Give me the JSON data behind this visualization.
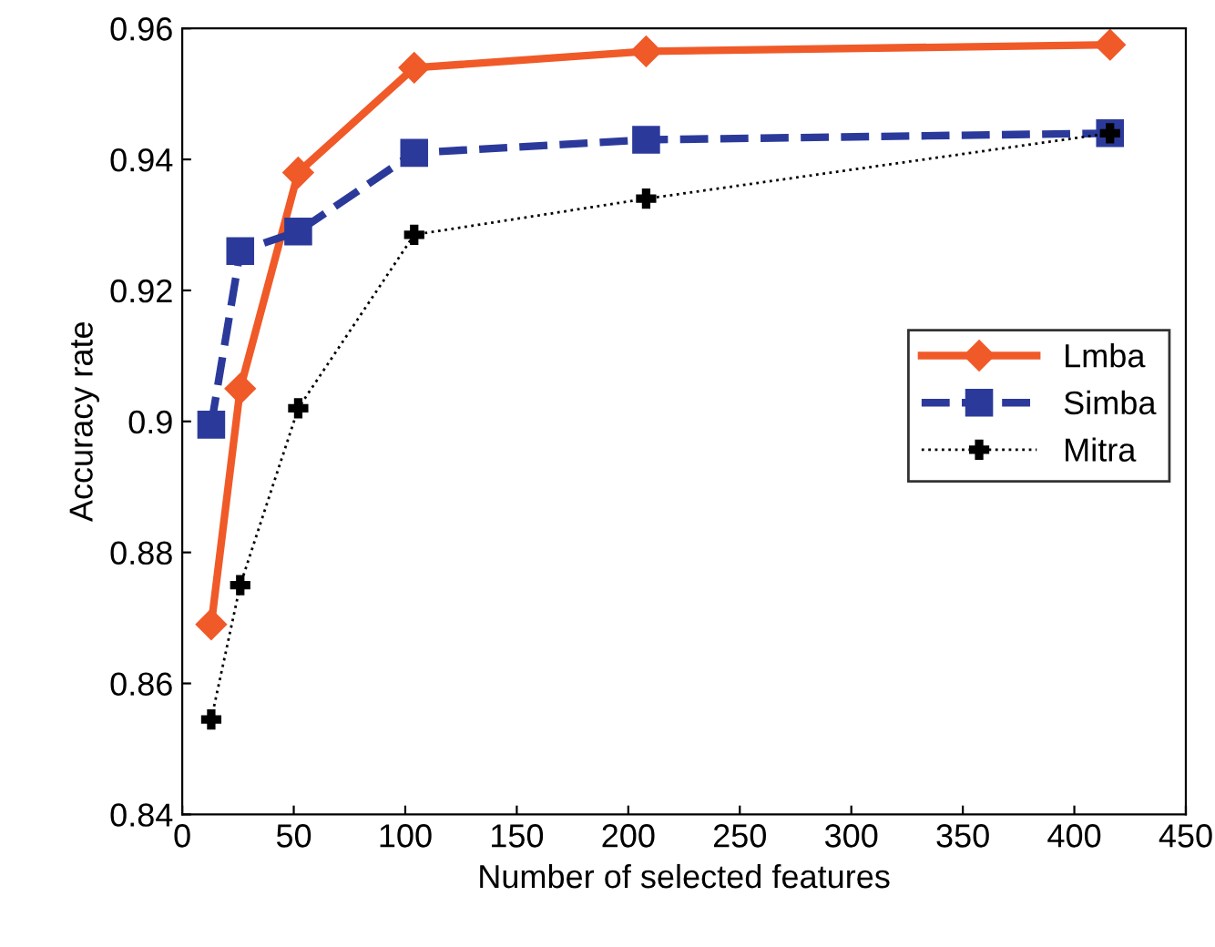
{
  "chart_data": {
    "type": "line",
    "xlabel": "Number of selected features",
    "ylabel": "Accuracy rate",
    "x": [
      13,
      26,
      52,
      104,
      208,
      416
    ],
    "series": [
      {
        "name": "Lmba",
        "color": "#f05a28",
        "marker": "diamond",
        "line_style": "solid",
        "values": [
          0.869,
          0.905,
          0.938,
          0.954,
          0.9565,
          0.9575
        ]
      },
      {
        "name": "Simba",
        "color": "#2b3a9a",
        "marker": "square",
        "line_style": "dashed",
        "values": [
          0.8995,
          0.926,
          0.929,
          0.941,
          0.943,
          0.944
        ]
      },
      {
        "name": "Mitra",
        "color": "#000000",
        "marker": "cross",
        "line_style": "dotted",
        "values": [
          0.8545,
          0.875,
          0.902,
          0.9285,
          0.934,
          0.944
        ]
      }
    ],
    "xlim": [
      0,
      450
    ],
    "xticks": [
      0,
      50,
      100,
      150,
      200,
      250,
      300,
      350,
      400,
      450
    ],
    "ylim": [
      0.84,
      0.96
    ],
    "yticks": [
      {
        "value": 0.84,
        "label": "0.84"
      },
      {
        "value": 0.86,
        "label": "0.86"
      },
      {
        "value": 0.88,
        "label": "0.88"
      },
      {
        "value": 0.9,
        "label": "0.9"
      },
      {
        "value": 0.92,
        "label": "0.92"
      },
      {
        "value": 0.94,
        "label": "0.94"
      },
      {
        "value": 0.96,
        "label": "0.96"
      }
    ],
    "grid": false,
    "legend": "right"
  }
}
